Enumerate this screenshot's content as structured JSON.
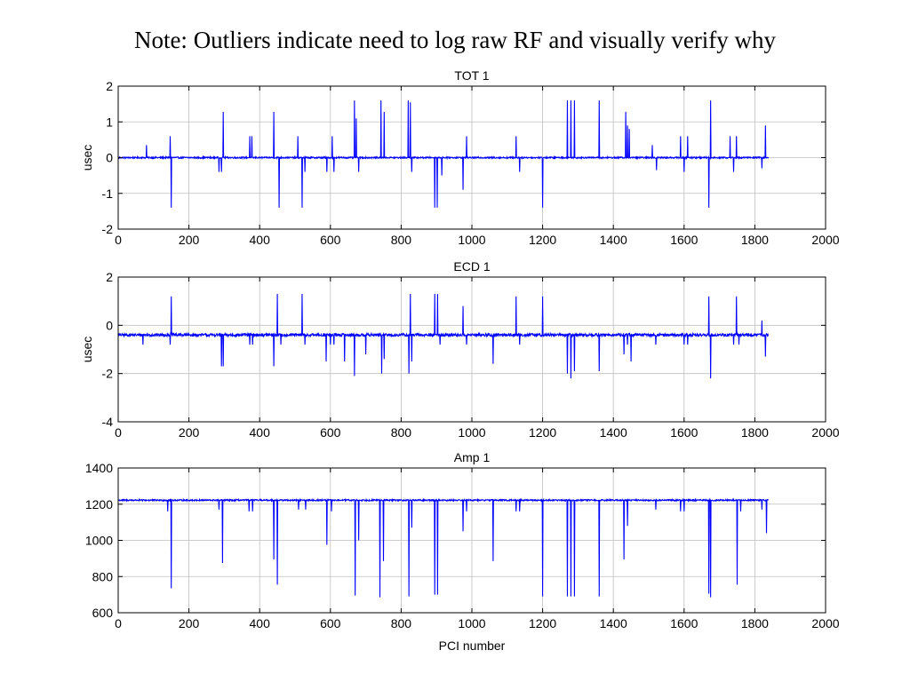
{
  "slide": {
    "title": "Note: Outliers indicate need to log raw RF and visually verify why"
  },
  "colors": {
    "trace": "#0000ff",
    "grid": "#bebebe",
    "axes": "#000000"
  },
  "chart_data": [
    {
      "type": "line",
      "title": "TOT 1",
      "xlabel": "",
      "ylabel": "usec",
      "xlim": [
        0,
        2000
      ],
      "ylim": [
        -2,
        2
      ],
      "xticks": [
        0,
        200,
        400,
        600,
        800,
        1000,
        1200,
        1400,
        1600,
        1800,
        2000
      ],
      "yticks": [
        -2,
        -1,
        0,
        1,
        2
      ],
      "ytick_labels": [
        "-2",
        "-1",
        "0",
        "1",
        "2"
      ],
      "grid": true,
      "baseline": 0,
      "noise": 0.02,
      "x_range": [
        1,
        1838
      ],
      "spikes": [
        [
          80,
          0.35
        ],
        [
          147,
          0.6
        ],
        [
          150,
          -1.4
        ],
        [
          285,
          -0.4
        ],
        [
          292,
          -0.4
        ],
        [
          297,
          1.28
        ],
        [
          372,
          0.6
        ],
        [
          378,
          0.6
        ],
        [
          440,
          1.28
        ],
        [
          455,
          -1.4
        ],
        [
          508,
          0.6
        ],
        [
          520,
          -1.4
        ],
        [
          528,
          -0.4
        ],
        [
          590,
          -0.4
        ],
        [
          605,
          0.6
        ],
        [
          610,
          -0.4
        ],
        [
          668,
          1.6
        ],
        [
          673,
          1.1
        ],
        [
          680,
          -0.4
        ],
        [
          743,
          1.6
        ],
        [
          752,
          1.28
        ],
        [
          820,
          1.6
        ],
        [
          826,
          1.55
        ],
        [
          830,
          -0.4
        ],
        [
          895,
          -1.4
        ],
        [
          902,
          -1.4
        ],
        [
          915,
          -0.5
        ],
        [
          975,
          -0.9
        ],
        [
          985,
          0.6
        ],
        [
          1125,
          0.6
        ],
        [
          1135,
          -0.4
        ],
        [
          1200,
          -1.4
        ],
        [
          1270,
          1.6
        ],
        [
          1280,
          1.6
        ],
        [
          1290,
          1.6
        ],
        [
          1360,
          1.6
        ],
        [
          1435,
          1.28
        ],
        [
          1440,
          0.9
        ],
        [
          1445,
          0.8
        ],
        [
          1510,
          0.35
        ],
        [
          1522,
          -0.35
        ],
        [
          1590,
          0.6
        ],
        [
          1600,
          -0.4
        ],
        [
          1610,
          0.6
        ],
        [
          1670,
          -1.4
        ],
        [
          1675,
          1.6
        ],
        [
          1730,
          0.6
        ],
        [
          1740,
          -0.4
        ],
        [
          1748,
          0.6
        ],
        [
          1820,
          -0.3
        ],
        [
          1830,
          0.9
        ]
      ]
    },
    {
      "type": "line",
      "title": "ECD 1",
      "xlabel": "",
      "ylabel": "usec",
      "xlim": [
        0,
        2000
      ],
      "ylim": [
        -4,
        2
      ],
      "xticks": [
        0,
        200,
        400,
        600,
        800,
        1000,
        1200,
        1400,
        1600,
        1800,
        2000
      ],
      "yticks": [
        -4,
        -2,
        0,
        2
      ],
      "ytick_labels": [
        "-4",
        "-2",
        "0",
        "2"
      ],
      "grid": true,
      "baseline": -0.4,
      "noise": 0.06,
      "x_range": [
        1,
        1838
      ],
      "spikes": [
        [
          70,
          -0.8
        ],
        [
          147,
          -0.8
        ],
        [
          150,
          1.2
        ],
        [
          292,
          -1.7
        ],
        [
          297,
          -1.7
        ],
        [
          372,
          -0.8
        ],
        [
          380,
          -0.8
        ],
        [
          440,
          -1.7
        ],
        [
          450,
          1.3
        ],
        [
          460,
          -0.8
        ],
        [
          520,
          1.3
        ],
        [
          528,
          -0.8
        ],
        [
          588,
          -1.5
        ],
        [
          600,
          -0.8
        ],
        [
          610,
          -0.8
        ],
        [
          640,
          -1.5
        ],
        [
          668,
          -2.1
        ],
        [
          700,
          -1.2
        ],
        [
          745,
          -2.0
        ],
        [
          752,
          -1.4
        ],
        [
          822,
          -2.0
        ],
        [
          826,
          1.3
        ],
        [
          830,
          -1.5
        ],
        [
          895,
          1.3
        ],
        [
          903,
          1.3
        ],
        [
          910,
          -0.8
        ],
        [
          975,
          0.8
        ],
        [
          985,
          -0.8
        ],
        [
          1060,
          -1.6
        ],
        [
          1125,
          1.2
        ],
        [
          1135,
          -0.8
        ],
        [
          1200,
          1.2
        ],
        [
          1270,
          -2.0
        ],
        [
          1280,
          -2.2
        ],
        [
          1290,
          -1.9
        ],
        [
          1360,
          -1.9
        ],
        [
          1430,
          -1.2
        ],
        [
          1440,
          -0.8
        ],
        [
          1450,
          -1.5
        ],
        [
          1520,
          -0.8
        ],
        [
          1600,
          -0.8
        ],
        [
          1610,
          -0.8
        ],
        [
          1670,
          1.2
        ],
        [
          1675,
          -2.2
        ],
        [
          1740,
          -0.8
        ],
        [
          1748,
          1.2
        ],
        [
          1755,
          -0.8
        ],
        [
          1820,
          0.2
        ],
        [
          1830,
          -1.3
        ]
      ]
    },
    {
      "type": "line",
      "title": "Amp 1",
      "xlabel": "PCI number",
      "ylabel": "",
      "xlim": [
        0,
        2000
      ],
      "ylim": [
        600,
        1400
      ],
      "xticks": [
        0,
        200,
        400,
        600,
        800,
        1000,
        1200,
        1400,
        1600,
        1800,
        2000
      ],
      "yticks": [
        600,
        800,
        1000,
        1200,
        1400
      ],
      "ytick_labels": [
        "600",
        "800",
        "1000",
        "1200",
        "1400"
      ],
      "grid": true,
      "baseline": 1222,
      "noise": 4,
      "x_range": [
        1,
        1838
      ],
      "spikes": [
        [
          140,
          1160
        ],
        [
          150,
          735
        ],
        [
          285,
          1170
        ],
        [
          295,
          875
        ],
        [
          370,
          1160
        ],
        [
          380,
          1160
        ],
        [
          440,
          895
        ],
        [
          450,
          755
        ],
        [
          510,
          1170
        ],
        [
          530,
          1170
        ],
        [
          590,
          975
        ],
        [
          603,
          1160
        ],
        [
          670,
          695
        ],
        [
          680,
          1000
        ],
        [
          740,
          685
        ],
        [
          750,
          885
        ],
        [
          822,
          690
        ],
        [
          830,
          1070
        ],
        [
          895,
          700
        ],
        [
          903,
          700
        ],
        [
          975,
          1050
        ],
        [
          985,
          1160
        ],
        [
          1060,
          885
        ],
        [
          1125,
          1160
        ],
        [
          1135,
          1160
        ],
        [
          1200,
          690
        ],
        [
          1270,
          690
        ],
        [
          1280,
          690
        ],
        [
          1290,
          690
        ],
        [
          1360,
          690
        ],
        [
          1430,
          895
        ],
        [
          1440,
          1080
        ],
        [
          1520,
          1170
        ],
        [
          1590,
          1160
        ],
        [
          1600,
          1160
        ],
        [
          1670,
          705
        ],
        [
          1675,
          685
        ],
        [
          1750,
          755
        ],
        [
          1760,
          1160
        ],
        [
          1820,
          1170
        ],
        [
          1833,
          1040
        ]
      ]
    }
  ]
}
